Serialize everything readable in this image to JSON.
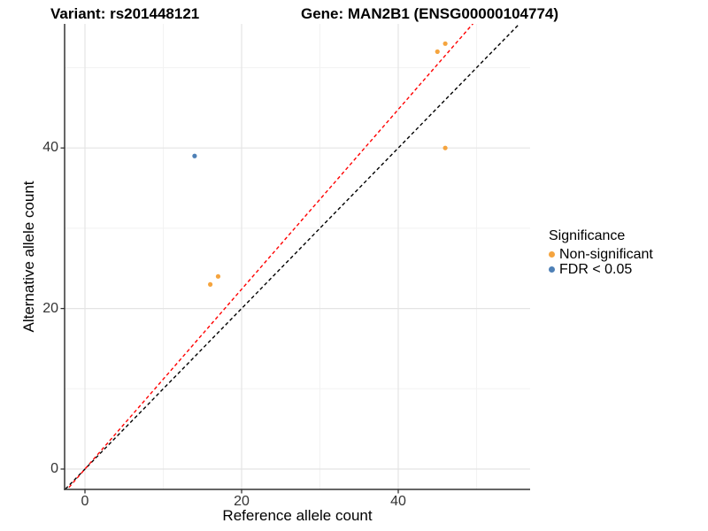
{
  "titles": {
    "left": "Variant: rs201448121",
    "right": "Gene: MAN2B1 (ENSG00000104774)"
  },
  "axes": {
    "x_label": "Reference allele count",
    "y_label": "Alternative allele count"
  },
  "legend": {
    "title": "Significance",
    "items": [
      {
        "label": "Non-significant",
        "color": "#F5A43E"
      },
      {
        "label": "FDR < 0.05",
        "color": "#4E80B6"
      }
    ]
  },
  "chart_data": {
    "type": "scatter",
    "title_left": "Variant: rs201448121",
    "title_right": "Gene: MAN2B1 (ENSG00000104774)",
    "xlabel": "Reference allele count",
    "ylabel": "Alternative allele count",
    "xlim": [
      -2.6,
      56.8
    ],
    "ylim": [
      -2.5,
      55.5
    ],
    "x_major_ticks": [
      0,
      20,
      40
    ],
    "y_major_ticks": [
      0,
      20,
      40
    ],
    "x_minor_gridlines": [
      10,
      30,
      50
    ],
    "y_minor_gridlines": [
      10,
      30,
      50
    ],
    "grid": true,
    "legend_position": "right",
    "legend_title": "Significance",
    "series": [
      {
        "name": "Non-significant",
        "color": "#F5A43E",
        "points": [
          [
            46,
            53
          ],
          [
            45,
            52
          ],
          [
            46,
            40
          ],
          [
            17,
            24
          ],
          [
            16,
            23
          ]
        ]
      },
      {
        "name": "FDR < 0.05",
        "color": "#4E80B6",
        "points": [
          [
            14,
            39
          ]
        ]
      }
    ],
    "reference_lines": [
      {
        "name": "identity-line",
        "slope": 1.0,
        "intercept": 0,
        "color": "#000000",
        "style": "dashed"
      },
      {
        "name": "expected-ratio-line",
        "slope": 1.12,
        "intercept": 0,
        "color": "#FF0000",
        "style": "dashed"
      }
    ]
  },
  "colors": {
    "background": "#FFFFFF",
    "grid_major": "#E4E4E4",
    "grid_minor": "#F2F2F2",
    "axis_line": "#333333",
    "tick_text": "#333333",
    "non_significant": "#F5A43E",
    "fdr_significant": "#4E80B6"
  }
}
